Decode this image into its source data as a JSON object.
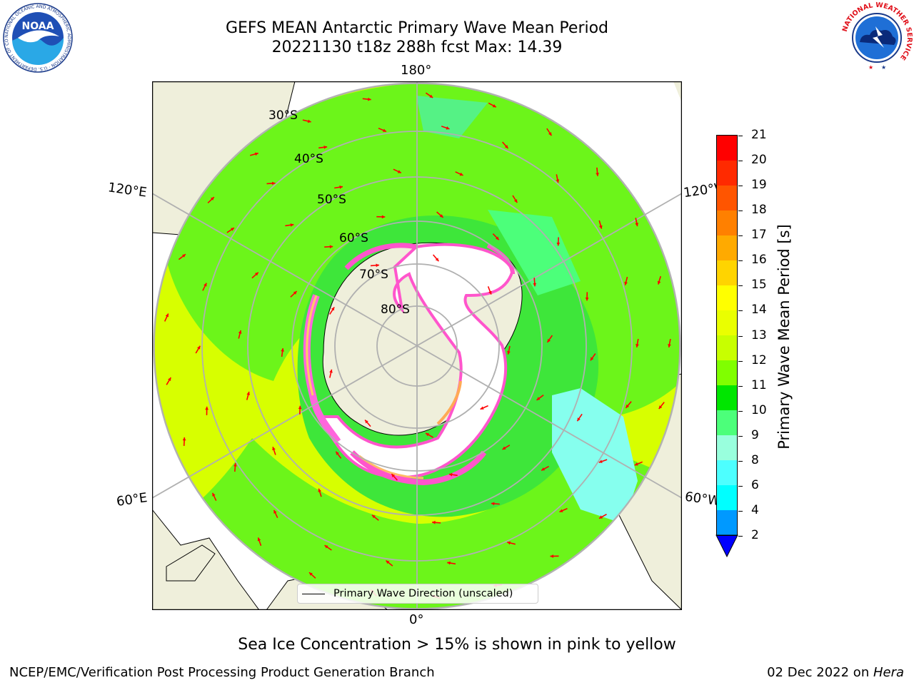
{
  "title_line1": "GEFS MEAN Antarctic Primary Wave Mean Period",
  "title_line2": "20221130 t18z 288h fcst   Max: 14.39",
  "map": {
    "longitude_labels": [
      "180°",
      "120°E",
      "120°W",
      "60°E",
      "60°W",
      "0°"
    ],
    "latitude_labels": [
      "30°S",
      "40°S",
      "50°S",
      "60°S",
      "70°S",
      "80°S"
    ],
    "legend_label": "Primary Wave Direction (unscaled)",
    "arrow_color": "#ff0000",
    "land_color": "#efefdb",
    "sea_ice_color": "#ffffff"
  },
  "colorbar": {
    "label": "Primary Wave Mean Period [s]",
    "ticks": [
      "21",
      "20",
      "19",
      "18",
      "17",
      "16",
      "15",
      "14",
      "13",
      "12",
      "11",
      "10",
      "9",
      "8",
      "6",
      "4",
      "2"
    ],
    "colors": [
      "#ff0000",
      "#ff2a00",
      "#ff5500",
      "#ff8000",
      "#ffaa00",
      "#ffd400",
      "#ffff00",
      "#eaff00",
      "#c8ff00",
      "#80ff00",
      "#00e600",
      "#4cff7a",
      "#99ffdd",
      "#4dffff",
      "#00ffff",
      "#0099ff",
      "#0000ff"
    ]
  },
  "sea_ice_note": "Sea Ice Concentration > 15% is shown in pink to yellow",
  "footer_left": "NCEP/EMC/Verification Post Processing Product Generation Branch",
  "footer_date": "02 Dec 2022 on ",
  "footer_host": "Hera",
  "logos": {
    "noaa_text": "NOAA",
    "noaa_ring": "NATIONAL OCEANIC AND ATMOSPHERIC ADMINISTRATION · U.S. DEPARTMENT OF COMMERCE",
    "nws_ring": "NATIONAL WEATHER SERVICE"
  }
}
